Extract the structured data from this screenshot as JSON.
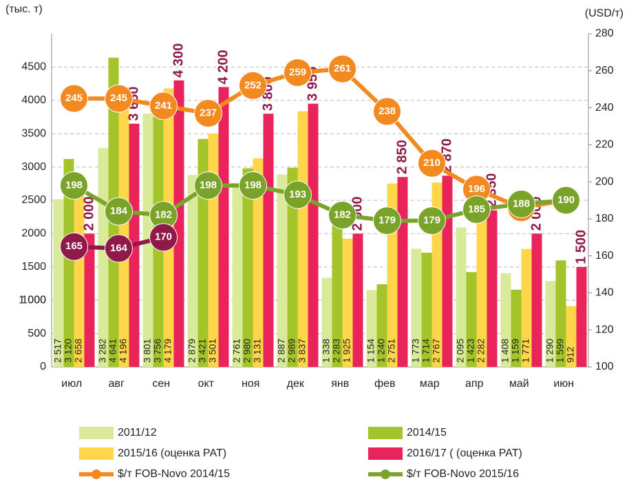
{
  "chart_data": {
    "type": "bar",
    "y_label": "(тыс. т)",
    "y2_label": "(USD/т)",
    "categories": [
      "июл",
      "авг",
      "сен",
      "окт",
      "ноя",
      "дек",
      "янв",
      "фев",
      "мар",
      "апр",
      "май",
      "июн"
    ],
    "ylim": [
      0,
      5000
    ],
    "yticks": [
      0,
      500,
      1000,
      1500,
      2000,
      2500,
      3000,
      3500,
      4000,
      4500,
      {
        "value": 1000,
        "label": "1 000"
      }
    ],
    "y2lim": [
      100,
      280
    ],
    "y2ticks": [
      100,
      120,
      140,
      160,
      180,
      200,
      220,
      240,
      260,
      280
    ],
    "grid": true,
    "series": [
      {
        "name": "2011/12",
        "kind": "bar",
        "color": "#d9ea9a",
        "values": [
          2517,
          3282,
          3801,
          2879,
          2761,
          2887,
          1338,
          1154,
          1773,
          2095,
          1408,
          1290
        ],
        "value_labels": [
          "2 517",
          "3 282",
          "3 801",
          "2 879",
          "2 761",
          "2 887",
          "1 338",
          "1 154",
          "1 773",
          "2 095",
          "1 408",
          "1 290"
        ]
      },
      {
        "name": "2014/15",
        "kind": "bar",
        "color": "#a3c52b",
        "values": [
          3120,
          4641,
          3756,
          3421,
          2980,
          2989,
          2283,
          1240,
          1714,
          1423,
          1159,
          1599
        ],
        "value_labels": [
          "3 120",
          "4 641",
          "3 756",
          "3 421",
          "2 980",
          "2 989",
          "2 283",
          "1 240",
          "1 714",
          "1 423",
          "1 159",
          "1 599"
        ]
      },
      {
        "name": "2015/16 (оценка РАТ)",
        "kind": "bar",
        "color": "#ffd54a",
        "values": [
          2658,
          4196,
          4179,
          3501,
          3131,
          3837,
          1925,
          2751,
          2767,
          2282,
          1771,
          912
        ],
        "value_labels": [
          "2 658",
          "4 196",
          "4 179",
          "3 501",
          "3 131",
          "3 837",
          "1 925",
          "2 751",
          "2 767",
          "2 282",
          "1 771",
          "912"
        ]
      },
      {
        "name": "2016/17 ( (оценка РАТ)",
        "kind": "bar",
        "color": "#e8245a",
        "values": [
          2000,
          3650,
          4300,
          4200,
          3800,
          3950,
          2000,
          2850,
          2870,
          2350,
          2000,
          1500
        ],
        "value_labels": [
          "2 000",
          "3 650",
          "4 300",
          "4 200",
          "3 800",
          "3 950",
          "2 000",
          "2 850",
          "2 870",
          "2 350",
          "2 000",
          "1 500"
        ]
      },
      {
        "name": "$/т FOB-Novo 2014/15",
        "kind": "line",
        "axis": "y2",
        "color": "#f28a1f",
        "values": [
          245,
          245,
          241,
          237,
          252,
          259,
          261,
          238,
          210,
          196,
          186,
          190
        ]
      },
      {
        "name": "$/т FOB-Novo 2015/16",
        "kind": "line",
        "axis": "y2",
        "color": "#7aa32a",
        "values": [
          198,
          184,
          182,
          198,
          198,
          193,
          182,
          179,
          179,
          185,
          188,
          190
        ]
      },
      {
        "kind": "line",
        "axis": "y2",
        "color": "#8e1a4a",
        "values": [
          165,
          164,
          170,
          null,
          null,
          null,
          null,
          null,
          null,
          null,
          null,
          null
        ]
      }
    ]
  }
}
